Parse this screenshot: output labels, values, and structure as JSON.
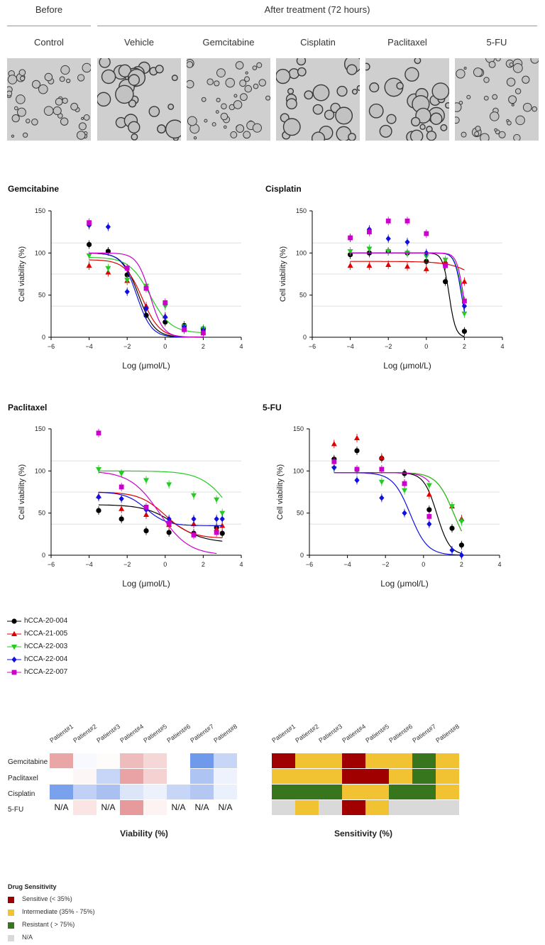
{
  "header": {
    "before_label": "Before",
    "after_label": "After treatment (72 hours)",
    "columns": [
      "Control",
      "Vehicle",
      "Gemcitabine",
      "Cisplatin",
      "Paclitaxel",
      "5-FU"
    ]
  },
  "legend": {
    "series": [
      {
        "name": "hCCA-20-004",
        "color": "#000000",
        "marker": "circle"
      },
      {
        "name": "hCCA-21-005",
        "color": "#e00000",
        "marker": "triangle-up"
      },
      {
        "name": "hCCA-22-003",
        "color": "#22cc22",
        "marker": "triangle-down"
      },
      {
        "name": "hCCA-22-004",
        "color": "#1010e0",
        "marker": "diamond"
      },
      {
        "name": "hCCA-22-007",
        "color": "#cc00cc",
        "marker": "square"
      }
    ]
  },
  "chart_data": [
    {
      "type": "scatter",
      "title": "Gemcitabine",
      "xlabel": "Log (μmol/L)",
      "ylabel": "Cell viability (%)",
      "xlim": [
        -6,
        4
      ],
      "ylim": [
        0,
        150
      ],
      "xticks": [
        "−6",
        "−4",
        "−2",
        "0",
        "2",
        "4"
      ],
      "yticks": [
        "0",
        "50",
        "100",
        "150"
      ],
      "series": [
        {
          "name": "hCCA-20-004",
          "x": [
            -4,
            -3,
            -2,
            -1,
            0,
            1,
            2
          ],
          "y": [
            110,
            102,
            74,
            26,
            18,
            14,
            10
          ],
          "curve": {
            "top": 100,
            "bottom": 0,
            "ic50": -1.4,
            "hill": 0.65
          }
        },
        {
          "name": "hCCA-21-005",
          "x": [
            -4,
            -3,
            -2,
            -1,
            0,
            1,
            2
          ],
          "y": [
            85,
            77,
            67,
            37,
            25,
            10,
            6
          ],
          "curve": {
            "top": 92,
            "bottom": 0,
            "ic50": -1.2,
            "hill": 0.6
          }
        },
        {
          "name": "hCCA-22-003",
          "x": [
            -4,
            -3,
            -2,
            -1,
            0,
            1,
            2
          ],
          "y": [
            97,
            82,
            68,
            61,
            37,
            13,
            10
          ],
          "curve": {
            "top": 95,
            "bottom": 5,
            "ic50": -0.8,
            "hill": 0.5
          }
        },
        {
          "name": "hCCA-22-004",
          "x": [
            -4,
            -3,
            -2,
            -1,
            0,
            1,
            2
          ],
          "y": [
            133,
            131,
            54,
            34,
            24,
            12,
            8
          ],
          "curve": {
            "top": 100,
            "bottom": 0,
            "ic50": -1.5,
            "hill": 0.7
          }
        },
        {
          "name": "hCCA-22-007",
          "x": [
            -4,
            -2,
            -1,
            0,
            1,
            2
          ],
          "y": [
            136,
            82,
            58,
            41,
            9,
            5
          ],
          "curve": {
            "top": 100,
            "bottom": 0,
            "ic50": -0.8,
            "hill": 0.8
          }
        }
      ]
    },
    {
      "type": "scatter",
      "title": "Cisplatin",
      "xlabel": "Log (μmol/L)",
      "ylabel": "Cell viability (%)",
      "xlim": [
        -6,
        4
      ],
      "ylim": [
        0,
        150
      ],
      "xticks": [
        "−6",
        "−4",
        "−2",
        "0",
        "2",
        "4"
      ],
      "yticks": [
        "0",
        "50",
        "100",
        "150"
      ],
      "series": [
        {
          "name": "hCCA-20-004",
          "x": [
            -4,
            -3,
            -2,
            -1,
            0,
            1,
            2
          ],
          "y": [
            98,
            100,
            102,
            100,
            90,
            66,
            7
          ],
          "curve": {
            "top": 100,
            "bottom": 0,
            "ic50": 1.2,
            "hill": 1.6
          }
        },
        {
          "name": "hCCA-21-005",
          "x": [
            -4,
            -3,
            -2,
            -1,
            0,
            1,
            2
          ],
          "y": [
            85,
            85,
            86,
            84,
            81,
            90,
            66
          ],
          "curve": {
            "top": 90,
            "bottom": 0,
            "ic50": 3.6,
            "hill": 0.35
          }
        },
        {
          "name": "hCCA-22-003",
          "x": [
            -4,
            -3,
            -2,
            -1,
            0,
            1,
            2
          ],
          "y": [
            102,
            105,
            102,
            100,
            96,
            92,
            28
          ],
          "curve": {
            "top": 100,
            "bottom": 0,
            "ic50": 1.9,
            "hill": 1.4
          }
        },
        {
          "name": "hCCA-22-004",
          "x": [
            -4,
            -3,
            -2,
            -1,
            0,
            1,
            2
          ],
          "y": [
            118,
            128,
            117,
            113,
            100,
            85,
            37
          ],
          "curve": {
            "top": 100,
            "bottom": 0,
            "ic50": 1.85,
            "hill": 1.5
          }
        },
        {
          "name": "hCCA-22-007",
          "x": [
            -4,
            -3,
            -2,
            -1,
            0,
            1,
            2
          ],
          "y": [
            118,
            125,
            138,
            138,
            123,
            85,
            43
          ],
          "curve": {
            "top": 100,
            "bottom": 0,
            "ic50": 1.95,
            "hill": 1.5
          }
        }
      ]
    },
    {
      "type": "scatter",
      "title": "Paclitaxel",
      "xlabel": "Log (μmol/L)",
      "ylabel": "Cell viability (%)",
      "xlim": [
        -6,
        4
      ],
      "ylim": [
        0,
        150
      ],
      "xticks": [
        "−6",
        "−4",
        "−2",
        "0",
        "2",
        "4"
      ],
      "yticks": [
        "0",
        "50",
        "100",
        "150"
      ],
      "series": [
        {
          "name": "hCCA-20-004",
          "x": [
            -3.5,
            -2.3,
            -1,
            0.2,
            1.5,
            2.7,
            3
          ],
          "y": [
            53,
            43,
            29,
            27,
            26,
            33,
            26
          ],
          "curve": {
            "top": 60,
            "bottom": 15,
            "ic50": 0.5,
            "hill": 0.35
          }
        },
        {
          "name": "hCCA-21-005",
          "x": [
            -3.5,
            -2.3,
            -1,
            0.2,
            1.5,
            2.7,
            3
          ],
          "y": [
            70,
            55,
            48,
            36,
            37,
            31,
            35
          ],
          "curve": {
            "top": 75,
            "bottom": 20,
            "ic50": 0,
            "hill": 0.4
          }
        },
        {
          "name": "hCCA-22-003",
          "x": [
            -3.5,
            -2.3,
            -1,
            0.2,
            1.5,
            2.7,
            3
          ],
          "y": [
            102,
            97,
            89,
            84,
            71,
            66,
            50
          ],
          "curve": {
            "top": 100,
            "bottom": 0,
            "ic50": 3.6,
            "hill": 0.35
          }
        },
        {
          "name": "hCCA-22-004",
          "x": [
            -3.5,
            -2.3,
            -1,
            0.2,
            1.5,
            2.7,
            3
          ],
          "y": [
            69,
            67,
            54,
            43,
            43,
            43,
            43
          ],
          "curve": {
            "top": 75,
            "bottom": 35,
            "ic50": -1,
            "hill": 0.5
          }
        },
        {
          "name": "hCCA-22-007",
          "x": [
            -3.5,
            -2.3,
            -1,
            0.2,
            1.5,
            2.7
          ],
          "y": [
            145,
            81,
            57,
            38,
            24,
            27
          ],
          "curve": {
            "top": 100,
            "bottom": 0,
            "ic50": -0.3,
            "hill": 0.35
          }
        }
      ]
    },
    {
      "type": "scatter",
      "title": "5-FU",
      "xlabel": "Log (μmol/L)",
      "ylabel": "Cell viability (%)",
      "xlim": [
        -6,
        4
      ],
      "ylim": [
        0,
        150
      ],
      "xticks": [
        "−6",
        "−4",
        "−2",
        "0",
        "2",
        "4"
      ],
      "yticks": [
        "0",
        "50",
        "100",
        "150"
      ],
      "series": [
        {
          "name": "hCCA-20-004",
          "x": [
            -4.7,
            -3.5,
            -2.2,
            -1,
            0.3,
            1.5,
            2
          ],
          "y": [
            114,
            124,
            115,
            97,
            54,
            32,
            12
          ],
          "curve": {
            "top": 98,
            "bottom": 0,
            "ic50": 0.7,
            "hill": 0.8
          }
        },
        {
          "name": "hCCA-21-005",
          "x": [
            -4.7,
            -3.5,
            -2.2,
            -1,
            0.3,
            1.5,
            2
          ],
          "y": [
            132,
            139,
            116,
            85,
            72,
            58,
            43
          ],
          "curve": {
            "top": 98,
            "bottom": 0,
            "ic50": 1.6,
            "hill": 0.6
          }
        },
        {
          "name": "hCCA-22-003",
          "x": [
            -4.7,
            -3.5,
            -2.2,
            -1,
            0.3,
            1.5,
            2
          ],
          "y": [
            103,
            100,
            87,
            77,
            83,
            58,
            40
          ],
          "curve": {
            "top": 98,
            "bottom": 0,
            "ic50": 1.6,
            "hill": 0.6
          }
        },
        {
          "name": "hCCA-22-004",
          "x": [
            -4.7,
            -3.5,
            -2.2,
            -1,
            0.3,
            1.5,
            2
          ],
          "y": [
            104,
            89,
            68,
            50,
            37,
            6,
            0
          ],
          "curve": {
            "top": 98,
            "bottom": 0,
            "ic50": -0.7,
            "hill": 0.6
          }
        },
        {
          "name": "hCCA-22-007",
          "x": [
            -4.7,
            -3.5,
            -2.2,
            -1,
            0.3
          ],
          "y": [
            111,
            102,
            102,
            85,
            46
          ],
          "curve": {
            "top": 98,
            "bottom": 0,
            "ic50": 1.1,
            "hill": 0.7
          }
        }
      ]
    },
    {
      "type": "heatmap",
      "title": "Viability (%)",
      "rows": [
        "Gemcitabine",
        "Paclitaxel",
        "Cisplatin",
        "5-FU"
      ],
      "columns": [
        "Patient#1",
        "Patient#2",
        "Patient#3",
        "Patient#4",
        "Patient#5",
        "Patient#6",
        "Patient#7",
        "Patient#8"
      ],
      "cells": [
        [
          "#eaa5a6",
          "#f7f9fe",
          "#fefbfb",
          "#eebcbc",
          "#f6d7d7",
          "#ffffff",
          "#6f9aeb",
          "#c7d6f6"
        ],
        [
          "#ffffff",
          "#fdf6f6",
          "#c7d6f6",
          "#e9a3a4",
          "#f5d1d1",
          "#ffffff",
          "#aec4f2",
          "#eef2fc"
        ],
        [
          "#7aa2ec",
          "#c1d1f5",
          "#a9c0f1",
          "#dde6f9",
          "#ecf1fc",
          "#c7d6f6",
          "#b3c7f2",
          "#eaf0fc"
        ],
        [
          "N/A",
          "#fae4e4",
          "N/A",
          "#e79a9b",
          "#fdf3f3",
          "N/A",
          "N/A",
          "N/A"
        ]
      ],
      "na_label": "N/A"
    },
    {
      "type": "heatmap",
      "title": "Sensitivity (%)",
      "rows": [
        "Gemcitabine",
        "Paclitaxel",
        "Cisplatin",
        "5-FU"
      ],
      "columns": [
        "Patient#1",
        "Patient#2",
        "Patient#3",
        "Patient#4",
        "Patient#5",
        "Patient#6",
        "Patient#7",
        "Patient#8"
      ],
      "cells": [
        [
          "Sensitive",
          "Intermediate",
          "Intermediate",
          "Sensitive",
          "Intermediate",
          "Intermediate",
          "Resistant",
          "Intermediate"
        ],
        [
          "Intermediate",
          "Intermediate",
          "Intermediate",
          "Sensitive",
          "Sensitive",
          "Intermediate",
          "Resistant",
          "Intermediate"
        ],
        [
          "Resistant",
          "Resistant",
          "Resistant",
          "Intermediate",
          "Intermediate",
          "Resistant",
          "Resistant",
          "Intermediate"
        ],
        [
          "N/A",
          "Intermediate",
          "N/A",
          "Sensitive",
          "Intermediate",
          "N/A",
          "N/A",
          "N/A"
        ]
      ]
    }
  ],
  "sensitivity_key": {
    "title": "Drug Sensitivity",
    "items": [
      {
        "category": "Sensitive",
        "label": "Sensitive (< 35%)",
        "color": "#a00000"
      },
      {
        "category": "Intermediate",
        "label": "Intermediate (35% - 75%)",
        "color": "#f1c232"
      },
      {
        "category": "Resistant",
        "label": "Resistant ( > 75%)",
        "color": "#38761d"
      },
      {
        "category": "N/A",
        "label": "N/A",
        "color": "#d9d9d9"
      }
    ]
  }
}
